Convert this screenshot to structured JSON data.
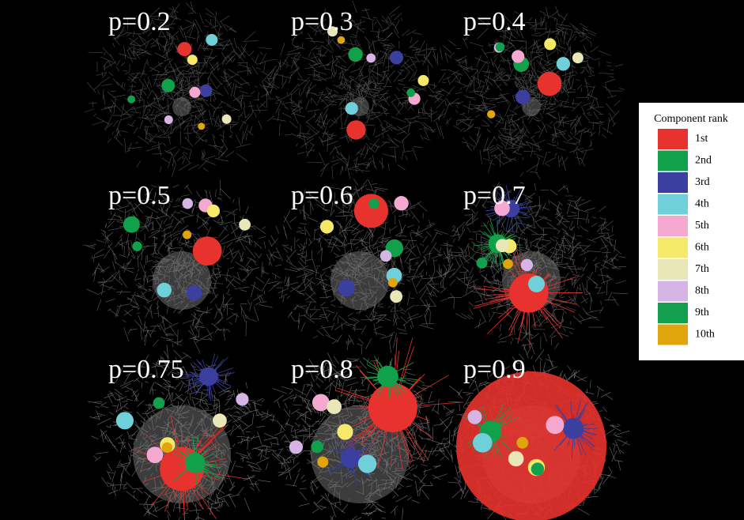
{
  "panels": [
    {
      "label": "p=0.2"
    },
    {
      "label": "p=0.3"
    },
    {
      "label": "p=0.4"
    },
    {
      "label": "p=0.5"
    },
    {
      "label": "p=0.6"
    },
    {
      "label": "p=0.7"
    },
    {
      "label": "p=0.75"
    },
    {
      "label": "p=0.8"
    },
    {
      "label": "p=0.9"
    }
  ],
  "legend": {
    "title": "Component rank",
    "items": [
      {
        "label": "1st",
        "color": "#e8322e"
      },
      {
        "label": "2nd",
        "color": "#12a14b"
      },
      {
        "label": "3rd",
        "color": "#3b3fa0"
      },
      {
        "label": "4th",
        "color": "#6fd0da"
      },
      {
        "label": "5th",
        "color": "#f5a9d0"
      },
      {
        "label": "6th",
        "color": "#f6e96a"
      },
      {
        "label": "7th",
        "color": "#e9e6b8"
      },
      {
        "label": "8th",
        "color": "#d6b5e6"
      },
      {
        "label": "9th",
        "color": "#13a04e"
      },
      {
        "label": "10th",
        "color": "#e0a40c"
      }
    ]
  }
}
